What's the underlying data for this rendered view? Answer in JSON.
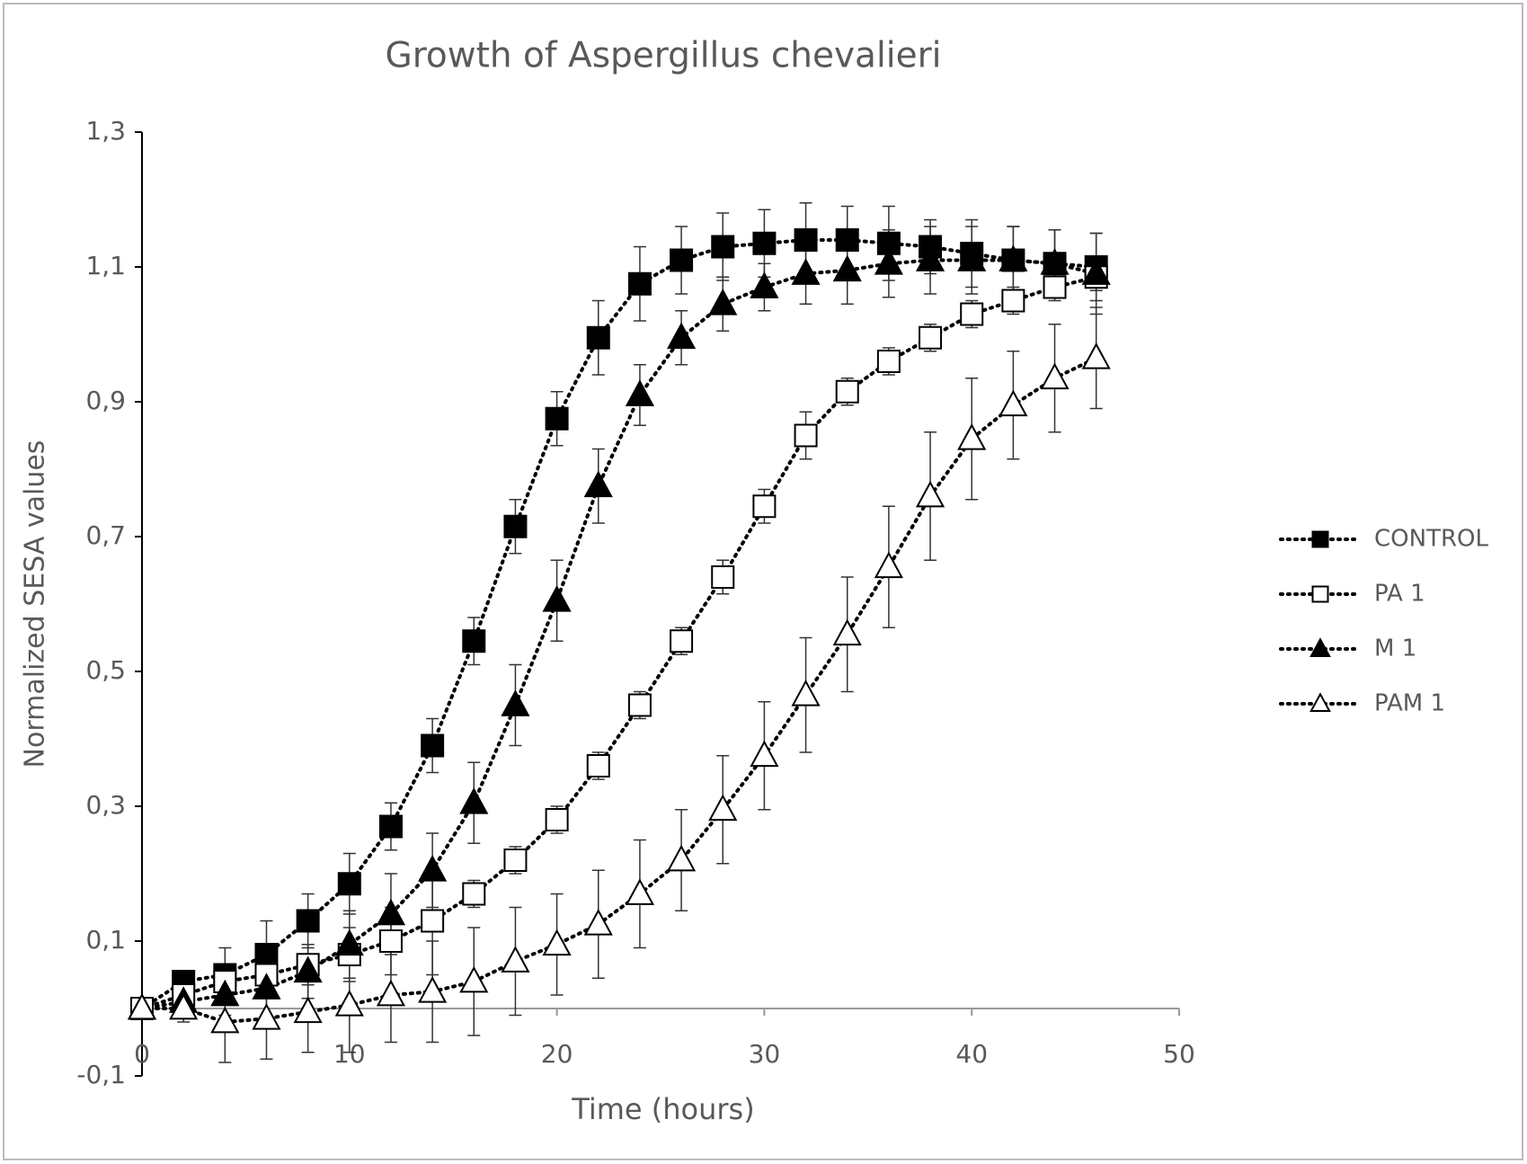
{
  "chart_data": {
    "type": "line",
    "title": "Growth of Aspergillus chevalieri",
    "x_label": "Time (hours)",
    "y_label": "Normalized  SESA values",
    "x": [
      0,
      2,
      4,
      6,
      8,
      10,
      12,
      14,
      16,
      18,
      20,
      22,
      24,
      26,
      28,
      30,
      32,
      34,
      36,
      38,
      40,
      42,
      44,
      46
    ],
    "series": [
      {
        "name": "CONTROL",
        "color": "#000000",
        "marker": "square",
        "values": [
          0,
          0.04,
          0.05,
          0.08,
          0.13,
          0.185,
          0.27,
          0.39,
          0.545,
          0.715,
          0.875,
          0.995,
          1.075,
          1.11,
          1.13,
          1.135,
          1.14,
          1.14,
          1.135,
          1.13,
          1.12,
          1.11,
          1.105,
          1.1
        ],
        "errors": [
          0,
          0.01,
          0.04,
          0.05,
          0.04,
          0.045,
          0.035,
          0.04,
          0.035,
          0.04,
          0.04,
          0.055,
          0.055,
          0.05,
          0.05,
          0.05,
          0.055,
          0.05,
          0.055,
          0.04,
          0.05,
          0.05,
          0.05,
          0.05
        ]
      },
      {
        "name": "PA 1",
        "color": "#ffffff",
        "marker": "square",
        "values": [
          0,
          0.02,
          0.04,
          0.05,
          0.065,
          0.08,
          0.1,
          0.13,
          0.17,
          0.22,
          0.28,
          0.36,
          0.45,
          0.545,
          0.64,
          0.745,
          0.85,
          0.915,
          0.96,
          0.995,
          1.03,
          1.05,
          1.07,
          1.085
        ],
        "errors": [
          0,
          0.01,
          0.02,
          0.02,
          0.03,
          0.04,
          0.05,
          0.08,
          0.02,
          0.02,
          0.02,
          0.02,
          0.02,
          0.02,
          0.025,
          0.025,
          0.035,
          0.02,
          0.02,
          0.02,
          0.02,
          0.02,
          0.02,
          0.02
        ]
      },
      {
        "name": "M 1",
        "color": "#000000",
        "marker": "triangle",
        "values": [
          0,
          0.01,
          0.02,
          0.03,
          0.055,
          0.095,
          0.14,
          0.205,
          0.305,
          0.45,
          0.605,
          0.775,
          0.91,
          0.995,
          1.045,
          1.07,
          1.09,
          1.095,
          1.105,
          1.11,
          1.11,
          1.11,
          1.105,
          1.09
        ],
        "errors": [
          0,
          0.01,
          0.03,
          0.04,
          0.04,
          0.05,
          0.06,
          0.055,
          0.06,
          0.06,
          0.06,
          0.055,
          0.045,
          0.04,
          0.04,
          0.035,
          0.045,
          0.05,
          0.05,
          0.05,
          0.05,
          0.05,
          0.05,
          0.06
        ]
      },
      {
        "name": "PAM 1",
        "color": "#ffffff",
        "marker": "triangle",
        "values": [
          0,
          0,
          -0.02,
          -0.015,
          -0.005,
          0.005,
          0.02,
          0.025,
          0.04,
          0.07,
          0.095,
          0.125,
          0.17,
          0.22,
          0.295,
          0.375,
          0.465,
          0.555,
          0.655,
          0.76,
          0.845,
          0.895,
          0.935,
          0.965
        ],
        "errors": [
          0,
          0.02,
          0.06,
          0.06,
          0.06,
          0.07,
          0.07,
          0.075,
          0.08,
          0.08,
          0.075,
          0.08,
          0.08,
          0.075,
          0.08,
          0.08,
          0.085,
          0.085,
          0.09,
          0.095,
          0.09,
          0.08,
          0.08,
          0.075
        ]
      }
    ],
    "xlim": [
      0,
      50
    ],
    "xticks": [
      0,
      10,
      20,
      30,
      40,
      50
    ],
    "ylim": [
      -0.1,
      1.3
    ],
    "yticks": [
      {
        "value": -0.1,
        "label": "-0,1"
      },
      {
        "value": 0.1,
        "label": "0,1"
      },
      {
        "value": 0.3,
        "label": "0,3"
      },
      {
        "value": 0.5,
        "label": "0,5"
      },
      {
        "value": 0.7,
        "label": "0,7"
      },
      {
        "value": 0.9,
        "label": "0,9"
      },
      {
        "value": 1.1,
        "label": "1,1"
      },
      {
        "value": 1.3,
        "label": "1,3"
      }
    ],
    "legend": "right",
    "grid": false
  }
}
